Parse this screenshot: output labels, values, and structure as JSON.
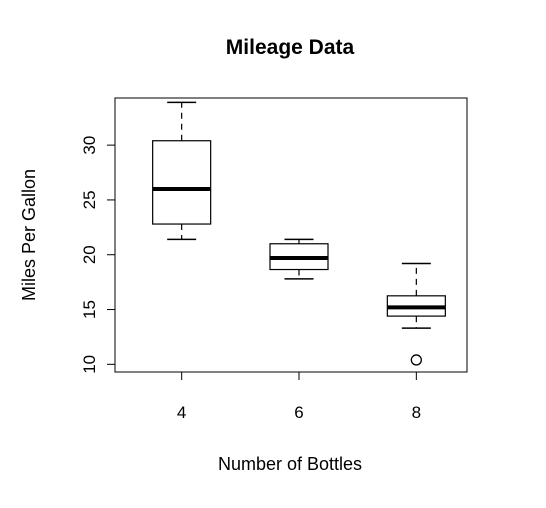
{
  "chart_data": {
    "type": "boxplot",
    "title": "Mileage Data",
    "xlabel": "Number of Bottles",
    "ylabel": "Miles Per Gallon",
    "ylim": [
      9.3,
      34.3
    ],
    "yticks": [
      10,
      15,
      20,
      25,
      30
    ],
    "grid": false,
    "categories": [
      "4",
      "6",
      "8"
    ],
    "boxes": [
      {
        "category": "4",
        "whisker_low": 21.4,
        "q1": 22.8,
        "median": 26.0,
        "q3": 30.4,
        "whisker_high": 33.9,
        "outliers": []
      },
      {
        "category": "6",
        "whisker_low": 17.8,
        "q1": 18.65,
        "median": 19.7,
        "q3": 21.0,
        "whisker_high": 21.4,
        "outliers": []
      },
      {
        "category": "8",
        "whisker_low": 13.3,
        "q1": 14.4,
        "median": 15.2,
        "q3": 16.25,
        "whisker_high": 19.2,
        "outliers": [
          10.4
        ]
      }
    ]
  }
}
